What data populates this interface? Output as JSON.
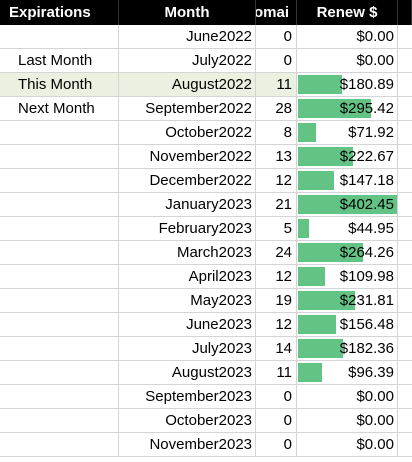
{
  "header": {
    "expirations": "Expirations",
    "month": "Month",
    "domains": "omai",
    "renew": "Renew $"
  },
  "bar_color": "#63c384",
  "bar_max": 402.45,
  "rows": [
    {
      "label": "",
      "month": "June2022",
      "count": "0",
      "renew": "$0.00",
      "renew_value": 0,
      "highlight": false
    },
    {
      "label": "Last Month",
      "month": "July2022",
      "count": "0",
      "renew": "$0.00",
      "renew_value": 0,
      "highlight": false
    },
    {
      "label": "This Month",
      "month": "August2022",
      "count": "11",
      "renew": "$180.89",
      "renew_value": 180.89,
      "highlight": true
    },
    {
      "label": "Next Month",
      "month": "September2022",
      "count": "28",
      "renew": "$295.42",
      "renew_value": 295.42,
      "highlight": false
    },
    {
      "label": "",
      "month": "October2022",
      "count": "8",
      "renew": "$71.92",
      "renew_value": 71.92,
      "highlight": false
    },
    {
      "label": "",
      "month": "November2022",
      "count": "13",
      "renew": "$222.67",
      "renew_value": 222.67,
      "highlight": false
    },
    {
      "label": "",
      "month": "December2022",
      "count": "12",
      "renew": "$147.18",
      "renew_value": 147.18,
      "highlight": false
    },
    {
      "label": "",
      "month": "January2023",
      "count": "21",
      "renew": "$402.45",
      "renew_value": 402.45,
      "highlight": false
    },
    {
      "label": "",
      "month": "February2023",
      "count": "5",
      "renew": "$44.95",
      "renew_value": 44.95,
      "highlight": false
    },
    {
      "label": "",
      "month": "March2023",
      "count": "24",
      "renew": "$264.26",
      "renew_value": 264.26,
      "highlight": false
    },
    {
      "label": "",
      "month": "April2023",
      "count": "12",
      "renew": "$109.98",
      "renew_value": 109.98,
      "highlight": false
    },
    {
      "label": "",
      "month": "May2023",
      "count": "19",
      "renew": "$231.81",
      "renew_value": 231.81,
      "highlight": false
    },
    {
      "label": "",
      "month": "June2023",
      "count": "12",
      "renew": "$156.48",
      "renew_value": 156.48,
      "highlight": false
    },
    {
      "label": "",
      "month": "July2023",
      "count": "14",
      "renew": "$182.36",
      "renew_value": 182.36,
      "highlight": false
    },
    {
      "label": "",
      "month": "August2023",
      "count": "11",
      "renew": "$96.39",
      "renew_value": 96.39,
      "highlight": false
    },
    {
      "label": "",
      "month": "September2023",
      "count": "0",
      "renew": "$0.00",
      "renew_value": 0,
      "highlight": false
    },
    {
      "label": "",
      "month": "October2023",
      "count": "0",
      "renew": "$0.00",
      "renew_value": 0,
      "highlight": false
    },
    {
      "label": "",
      "month": "November2023",
      "count": "0",
      "renew": "$0.00",
      "renew_value": 0,
      "highlight": false
    }
  ]
}
